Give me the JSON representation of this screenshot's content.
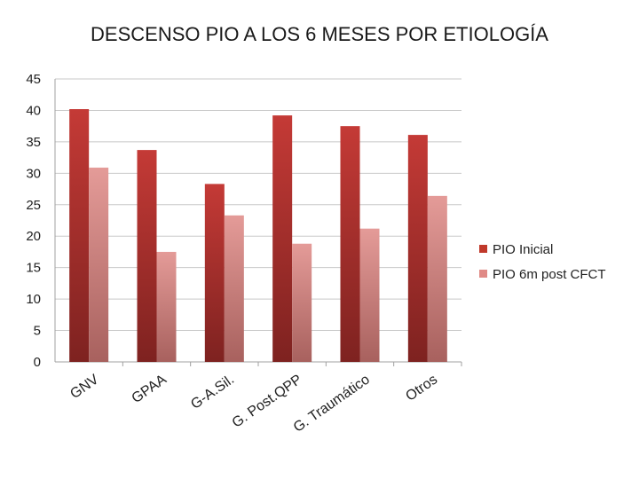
{
  "chart_data": {
    "type": "bar",
    "title": "DESCENSO PIO A LOS 6 MESES POR ETIOLOGÍA",
    "categories": [
      "GNV",
      "GPAA",
      "G-A.Sil.",
      "G. Post.QPP",
      "G. Traumático",
      "Otros"
    ],
    "series": [
      {
        "name": "PIO Inicial",
        "values": [
          40.2,
          33.7,
          28.3,
          39.2,
          37.5,
          36.1
        ],
        "color": "#c0392b"
      },
      {
        "name": "PIO 6m post CFCT",
        "values": [
          30.9,
          17.5,
          23.3,
          18.8,
          21.2,
          26.4
        ],
        "color": "#e08a86"
      }
    ],
    "yticks": [
      "0",
      "5",
      "10",
      "15",
      "20",
      "25",
      "30",
      "35",
      "40",
      "45"
    ],
    "ylim": [
      0,
      45
    ],
    "grid": true,
    "legend": "right"
  }
}
